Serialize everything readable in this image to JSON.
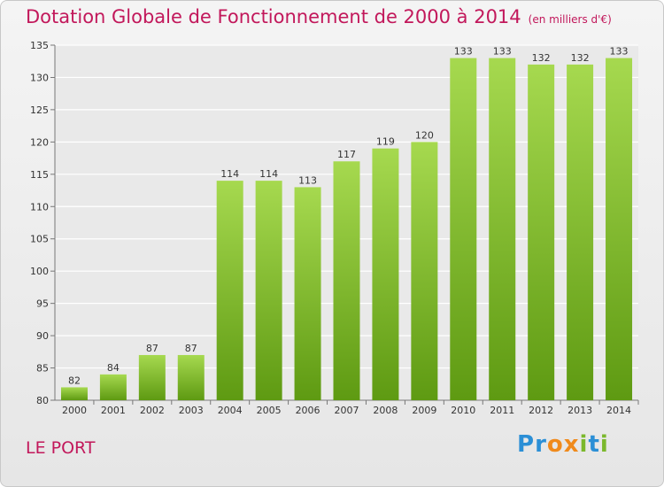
{
  "title": "Dotation Globale de Fonctionnement de 2000 à 2014",
  "subtitle": "(en milliers d'€)",
  "commune": "LE PORT",
  "logo": {
    "letters": [
      "P",
      "r",
      "o",
      "x",
      "i",
      "t",
      "i"
    ],
    "colors": [
      "#2b8fd6",
      "#2b8fd6",
      "#f08a1c",
      "#f08a1c",
      "#7bb82c",
      "#2b8fd6",
      "#7bb82c"
    ]
  },
  "colors": {
    "bar_top": "#a6d94f",
    "bar_bottom": "#5e9a12",
    "title": "#c2185b",
    "grid": "#ffffff"
  },
  "chart_data": {
    "type": "bar",
    "categories": [
      "2000",
      "2001",
      "2002",
      "2003",
      "2004",
      "2005",
      "2006",
      "2007",
      "2008",
      "2009",
      "2010",
      "2011",
      "2012",
      "2013",
      "2014"
    ],
    "values": [
      82,
      84,
      87,
      87,
      114,
      114,
      113,
      117,
      119,
      120,
      133,
      133,
      132,
      132,
      133
    ],
    "ylim": [
      80,
      135
    ],
    "yticks": [
      80,
      85,
      90,
      95,
      100,
      105,
      110,
      115,
      120,
      125,
      130,
      135
    ],
    "grid": true
  }
}
